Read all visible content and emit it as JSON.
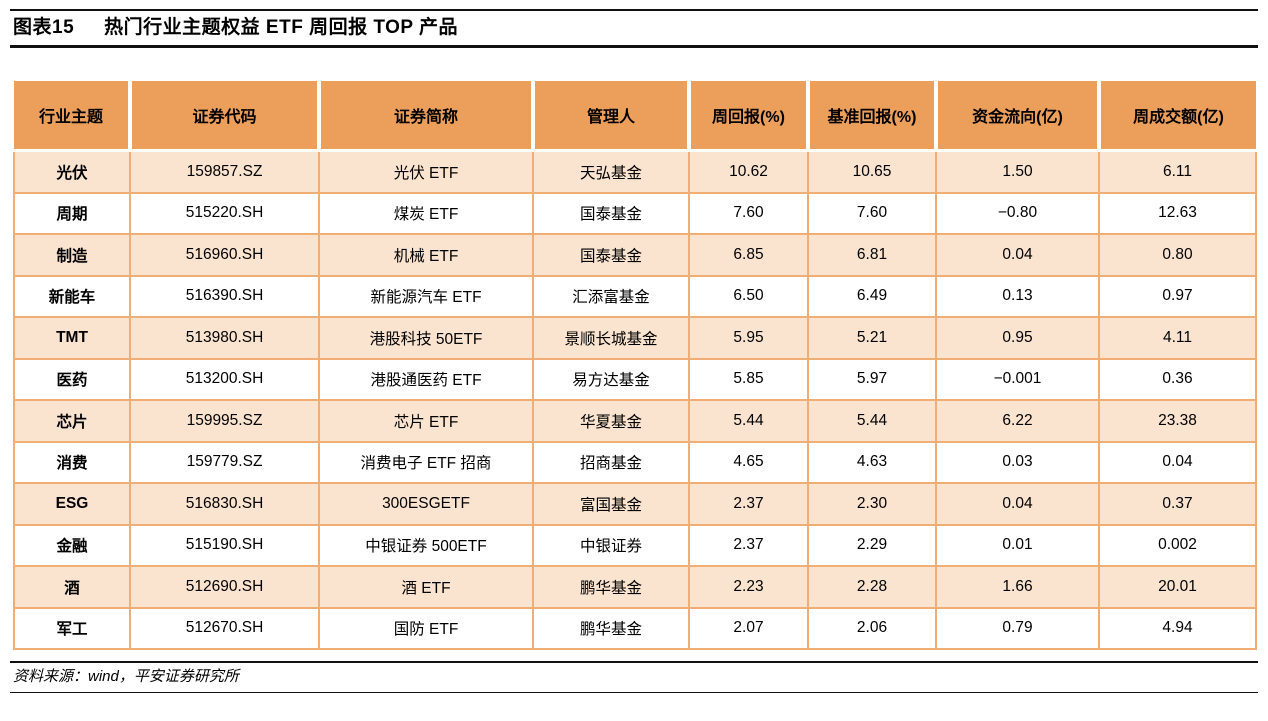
{
  "figure": {
    "title_label": "图表15",
    "title_text": "热门行业主题权益 ETF 周回报 TOP 产品",
    "source_note": "资料来源：wind，平安证券研究所"
  },
  "table": {
    "columns": [
      "行业主题",
      "证券代码",
      "证券简称",
      "管理人",
      "周回报(%)",
      "基准回报(%)",
      "资金流向(亿)",
      "周成交额(亿)"
    ],
    "rows": [
      [
        "光伏",
        "159857.SZ",
        "光伏 ETF",
        "天弘基金",
        "10.62",
        "10.65",
        "1.50",
        "6.11"
      ],
      [
        "周期",
        "515220.SH",
        "煤炭 ETF",
        "国泰基金",
        "7.60",
        "7.60",
        "−0.80",
        "12.63"
      ],
      [
        "制造",
        "516960.SH",
        "机械 ETF",
        "国泰基金",
        "6.85",
        "6.81",
        "0.04",
        "0.80"
      ],
      [
        "新能车",
        "516390.SH",
        "新能源汽车 ETF",
        "汇添富基金",
        "6.50",
        "6.49",
        "0.13",
        "0.97"
      ],
      [
        "TMT",
        "513980.SH",
        "港股科技 50ETF",
        "景顺长城基金",
        "5.95",
        "5.21",
        "0.95",
        "4.11"
      ],
      [
        "医药",
        "513200.SH",
        "港股通医药 ETF",
        "易方达基金",
        "5.85",
        "5.97",
        "−0.001",
        "0.36"
      ],
      [
        "芯片",
        "159995.SZ",
        "芯片 ETF",
        "华夏基金",
        "5.44",
        "5.44",
        "6.22",
        "23.38"
      ],
      [
        "消费",
        "159779.SZ",
        "消费电子 ETF 招商",
        "招商基金",
        "4.65",
        "4.63",
        "0.03",
        "0.04"
      ],
      [
        "ESG",
        "516830.SH",
        "300ESGETF",
        "富国基金",
        "2.37",
        "2.30",
        "0.04",
        "0.37"
      ],
      [
        "金融",
        "515190.SH",
        "中银证券 500ETF",
        "中银证券",
        "2.37",
        "2.29",
        "0.01",
        "0.002"
      ],
      [
        "酒",
        "512690.SH",
        "酒 ETF",
        "鹏华基金",
        "2.23",
        "2.28",
        "1.66",
        "20.01"
      ],
      [
        "军工",
        "512670.SH",
        "国防 ETF",
        "鹏华基金",
        "2.07",
        "2.06",
        "0.79",
        "4.94"
      ]
    ]
  },
  "colors": {
    "header_bg": "#EC9E5B",
    "row_alt_bg": "#FAE3CF",
    "row_bg": "#FFFFFF",
    "grid": "#F0AE74",
    "rule": "#111111"
  }
}
